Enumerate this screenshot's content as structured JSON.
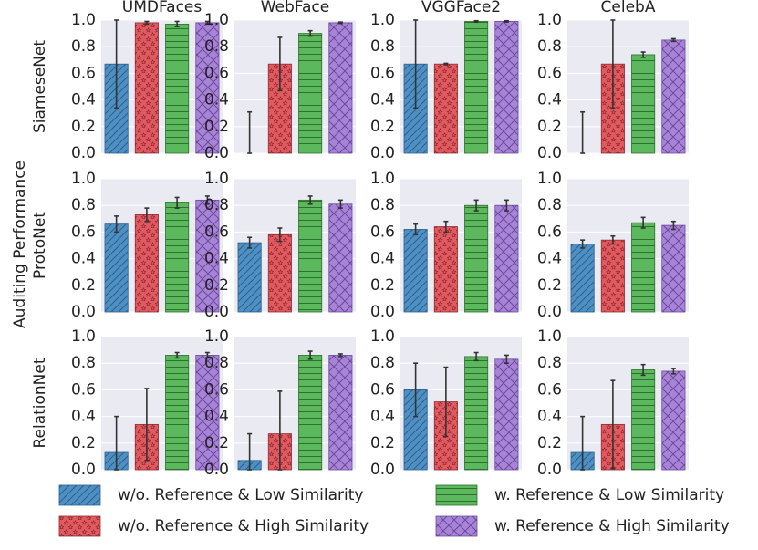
{
  "chart_data": {
    "type": "bar",
    "ylabel": "Auditing Performance",
    "ylim": [
      0.0,
      1.0
    ],
    "yticks": [
      "0.0",
      "0.2",
      "0.4",
      "0.6",
      "0.8",
      "1.0"
    ],
    "columns": [
      "UMDFaces",
      "WebFace",
      "VGGFace2",
      "CelebA"
    ],
    "rows": [
      "SiameseNet",
      "ProtoNet",
      "RelationNet"
    ],
    "series": [
      {
        "name": "w/o. Reference & Low Similarity",
        "color": "#4f90c4",
        "pattern": "diagonal"
      },
      {
        "name": "w/o. Reference & High Similarity",
        "color": "#e25a5f",
        "pattern": "stars"
      },
      {
        "name": "w. Reference & Low Similarity",
        "color": "#5cb85c",
        "pattern": "horizontal"
      },
      {
        "name": "w. Reference & High Similarity",
        "color": "#a884d8",
        "pattern": "crosshatch"
      }
    ],
    "panels": [
      [
        {
          "values": [
            0.67,
            0.98,
            0.97,
            0.98
          ],
          "errors": [
            0.33,
            0.01,
            0.02,
            0.01
          ]
        },
        {
          "values": [
            0.0,
            0.67,
            0.9,
            0.98
          ],
          "errors": [
            0.31,
            0.2,
            0.02,
            0.005
          ]
        },
        {
          "values": [
            0.67,
            0.67,
            0.99,
            0.99
          ],
          "errors": [
            0.33,
            0.005,
            0.005,
            0.005
          ]
        },
        {
          "values": [
            0.0,
            0.67,
            0.74,
            0.85
          ],
          "errors": [
            0.31,
            0.33,
            0.02,
            0.01
          ]
        }
      ],
      [
        {
          "values": [
            0.66,
            0.73,
            0.82,
            0.84
          ],
          "errors": [
            0.06,
            0.05,
            0.04,
            0.03
          ]
        },
        {
          "values": [
            0.52,
            0.58,
            0.84,
            0.81
          ],
          "errors": [
            0.04,
            0.05,
            0.03,
            0.03
          ]
        },
        {
          "values": [
            0.62,
            0.64,
            0.8,
            0.8
          ],
          "errors": [
            0.04,
            0.04,
            0.04,
            0.04
          ]
        },
        {
          "values": [
            0.51,
            0.54,
            0.67,
            0.65
          ],
          "errors": [
            0.03,
            0.03,
            0.04,
            0.03
          ]
        }
      ],
      [
        {
          "values": [
            0.13,
            0.34,
            0.86,
            0.86
          ],
          "errors": [
            0.27,
            0.27,
            0.02,
            0.02
          ]
        },
        {
          "values": [
            0.07,
            0.27,
            0.86,
            0.86
          ],
          "errors": [
            0.2,
            0.32,
            0.03,
            0.01
          ]
        },
        {
          "values": [
            0.6,
            0.51,
            0.85,
            0.83
          ],
          "errors": [
            0.2,
            0.26,
            0.03,
            0.03
          ]
        },
        {
          "values": [
            0.13,
            0.34,
            0.75,
            0.74
          ],
          "errors": [
            0.27,
            0.33,
            0.04,
            0.02
          ]
        }
      ]
    ]
  }
}
